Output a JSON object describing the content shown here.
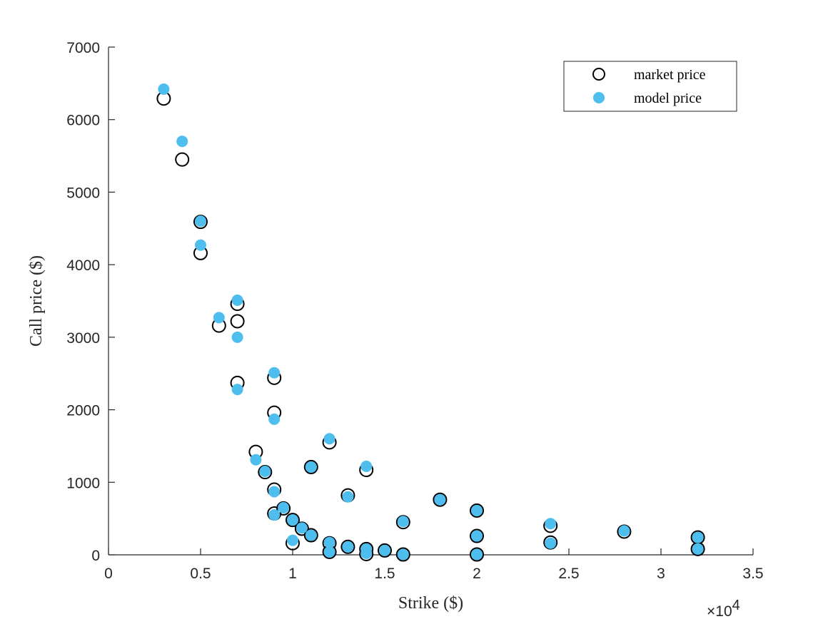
{
  "chart_data": {
    "type": "scatter",
    "xlabel": "Strike ($)",
    "ylabel": "Call price ($)",
    "xlim": [
      0,
      35000
    ],
    "ylim": [
      0,
      7000
    ],
    "x_ticks": [
      0,
      5000,
      10000,
      15000,
      20000,
      25000,
      30000,
      35000
    ],
    "x_tick_labels": [
      "0",
      "0.5",
      "1",
      "1.5",
      "2",
      "2.5",
      "3",
      "3.5"
    ],
    "x_exponent_base": "×10",
    "x_exponent_power": "4",
    "y_ticks": [
      0,
      1000,
      2000,
      3000,
      4000,
      5000,
      6000,
      7000
    ],
    "y_tick_labels": [
      "0",
      "1000",
      "2000",
      "3000",
      "4000",
      "5000",
      "6000",
      "7000"
    ],
    "grid": false,
    "legend_position": "top-right",
    "series": [
      {
        "name": "market price",
        "marker": "open-circle",
        "color": "#000000",
        "points": [
          [
            3000,
            6290
          ],
          [
            4000,
            5450
          ],
          [
            5000,
            4590
          ],
          [
            5000,
            4160
          ],
          [
            6000,
            3160
          ],
          [
            7000,
            3460
          ],
          [
            7000,
            3220
          ],
          [
            7000,
            2370
          ],
          [
            8000,
            1420
          ],
          [
            8500,
            1140
          ],
          [
            9000,
            2440
          ],
          [
            9000,
            1960
          ],
          [
            9000,
            900
          ],
          [
            9000,
            570
          ],
          [
            9500,
            640
          ],
          [
            10000,
            480
          ],
          [
            10000,
            160
          ],
          [
            10500,
            360
          ],
          [
            11000,
            1210
          ],
          [
            11000,
            270
          ],
          [
            12000,
            1550
          ],
          [
            12000,
            160
          ],
          [
            12000,
            40
          ],
          [
            13000,
            820
          ],
          [
            13000,
            110
          ],
          [
            14000,
            1170
          ],
          [
            14000,
            80
          ],
          [
            14000,
            10
          ],
          [
            15000,
            60
          ],
          [
            16000,
            450
          ],
          [
            16000,
            5
          ],
          [
            18000,
            760
          ],
          [
            20000,
            610
          ],
          [
            20000,
            260
          ],
          [
            20000,
            5
          ],
          [
            24000,
            400
          ],
          [
            24000,
            170
          ],
          [
            28000,
            320
          ],
          [
            32000,
            240
          ],
          [
            32000,
            80
          ]
        ]
      },
      {
        "name": "model price",
        "marker": "filled-circle",
        "color": "#4DBEEE",
        "points": [
          [
            3000,
            6420
          ],
          [
            4000,
            5700
          ],
          [
            5000,
            4600
          ],
          [
            5000,
            4270
          ],
          [
            6000,
            3270
          ],
          [
            7000,
            3510
          ],
          [
            7000,
            3000
          ],
          [
            7000,
            2280
          ],
          [
            8000,
            1310
          ],
          [
            8500,
            1150
          ],
          [
            9000,
            2510
          ],
          [
            9000,
            1870
          ],
          [
            9000,
            870
          ],
          [
            9000,
            550
          ],
          [
            9500,
            650
          ],
          [
            10000,
            480
          ],
          [
            10000,
            200
          ],
          [
            10500,
            370
          ],
          [
            11000,
            1210
          ],
          [
            11000,
            270
          ],
          [
            12000,
            1600
          ],
          [
            12000,
            170
          ],
          [
            12000,
            40
          ],
          [
            13000,
            800
          ],
          [
            13000,
            110
          ],
          [
            14000,
            1220
          ],
          [
            14000,
            80
          ],
          [
            14000,
            20
          ],
          [
            15000,
            60
          ],
          [
            16000,
            460
          ],
          [
            16000,
            5
          ],
          [
            18000,
            760
          ],
          [
            20000,
            610
          ],
          [
            20000,
            260
          ],
          [
            20000,
            5
          ],
          [
            24000,
            430
          ],
          [
            24000,
            160
          ],
          [
            28000,
            330
          ],
          [
            32000,
            240
          ],
          [
            32000,
            80
          ]
        ]
      }
    ]
  }
}
